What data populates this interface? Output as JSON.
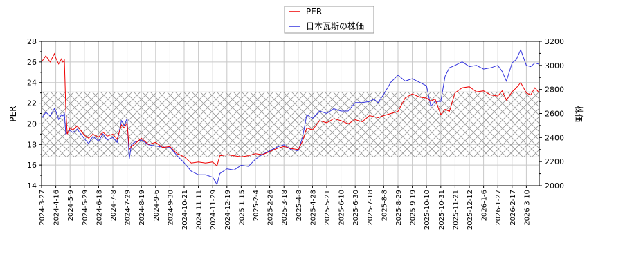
{
  "legend": {
    "items": [
      {
        "label": "PER",
        "color": "#ee0000"
      },
      {
        "label": "日本瓦斯の株価",
        "color": "#3333dd"
      }
    ]
  },
  "chart_data": {
    "type": "line",
    "title": "",
    "xlabel": "",
    "ylabel": "PER",
    "ylabel_right": "株価",
    "ylim": [
      14,
      28
    ],
    "ylim_right": [
      2000,
      3200
    ],
    "yticks": [
      14,
      16,
      18,
      20,
      22,
      24,
      26,
      28
    ],
    "yticks_right": [
      2000,
      2200,
      2400,
      2600,
      2800,
      3000,
      3200
    ],
    "grid": true,
    "legend_position": "top-center",
    "shaded_band": {
      "axis": "left",
      "from": 16.8,
      "to": 23.1,
      "style": "crosshatch"
    },
    "x_tick_labels": [
      "2024-3-27",
      "2024-4-16",
      "2024-5-9",
      "2024-5-29",
      "2024-6-18",
      "2024-7-8",
      "2024-7-29",
      "2024-8-19",
      "2024-9-6",
      "2024-9-30",
      "2024-10-21",
      "2024-11-11",
      "2024-11-29",
      "2024-12-19",
      "2025-1-15",
      "2025-2-4",
      "2025-2-26",
      "2025-3-18",
      "2025-4-8",
      "2025-4-28",
      "2025-5-21",
      "2025-6-10",
      "2025-6-30",
      "2025-7-18",
      "2025-8-8",
      "2025-8-29",
      "2025-9-19",
      "2025-10-10",
      "2025-10-31",
      "2025-11-21",
      "2025-12-12",
      "2026-1-6",
      "2026-1-27",
      "2026-2-17",
      "2026-3-10"
    ],
    "series": [
      {
        "name": "PER",
        "axis": "left",
        "color": "#ee0000",
        "x": [
          0,
          0.3,
          0.6,
          0.9,
          1.0,
          1.2,
          1.4,
          1.5,
          1.6,
          1.7,
          1.8,
          2.0,
          2.2,
          2.5,
          3.0,
          3.3,
          3.6,
          4.0,
          4.3,
          4.6,
          5.0,
          5.3,
          5.6,
          5.8,
          6.0,
          6.15,
          6.3,
          6.5,
          7.0,
          7.5,
          8.0,
          8.5,
          9.0,
          9.5,
          10.0,
          10.5,
          11.0,
          11.5,
          12.0,
          12.3,
          12.5,
          13.0,
          13.5,
          14.0,
          14.5,
          15.0,
          15.5,
          16.0,
          16.5,
          17.0,
          17.5,
          18.0,
          18.3,
          18.6,
          19.0,
          19.5,
          20.0,
          20.5,
          21.0,
          21.5,
          22.0,
          22.5,
          23.0,
          23.3,
          23.6,
          24.0,
          24.5,
          25.0,
          25.5,
          26.0,
          26.5,
          27.0,
          27.3,
          27.6,
          28.0,
          28.3,
          28.6,
          29.0,
          29.5,
          30.0,
          30.5,
          31.0,
          31.5,
          32.0,
          32.3,
          32.6,
          33.0,
          33.3,
          33.6,
          34.0,
          34.3,
          34.6,
          34.9
        ],
        "values": [
          26.0,
          26.6,
          26.0,
          26.8,
          26.4,
          25.8,
          26.3,
          26.0,
          26.2,
          21.5,
          19.0,
          19.6,
          19.4,
          19.8,
          18.9,
          18.6,
          19.0,
          18.7,
          19.2,
          18.8,
          19.0,
          18.5,
          19.9,
          19.6,
          20.1,
          17.5,
          17.8,
          18.0,
          18.6,
          18.0,
          18.2,
          17.7,
          17.8,
          17.1,
          16.8,
          16.2,
          16.3,
          16.2,
          16.3,
          15.9,
          16.9,
          17.0,
          16.9,
          16.8,
          16.9,
          17.1,
          17.0,
          17.3,
          17.6,
          17.8,
          17.6,
          17.5,
          18.3,
          19.6,
          19.4,
          20.3,
          20.1,
          20.5,
          20.3,
          20.0,
          20.4,
          20.2,
          20.8,
          20.7,
          20.6,
          20.8,
          21.0,
          21.2,
          22.5,
          22.9,
          22.6,
          22.5,
          22.2,
          22.4,
          20.9,
          21.4,
          21.2,
          23.0,
          23.5,
          23.6,
          23.1,
          23.2,
          22.8,
          22.7,
          23.2,
          22.3,
          23.1,
          23.5,
          24.0,
          23.0,
          22.8,
          23.5,
          23.0
        ]
      },
      {
        "name": "日本瓦斯の株価",
        "axis": "right",
        "color": "#3333dd",
        "x": [
          0,
          0.3,
          0.6,
          0.9,
          1.0,
          1.2,
          1.4,
          1.5,
          1.6,
          1.7,
          1.8,
          2.0,
          2.2,
          2.5,
          3.0,
          3.3,
          3.6,
          4.0,
          4.3,
          4.6,
          5.0,
          5.3,
          5.6,
          5.8,
          6.0,
          6.15,
          6.3,
          6.5,
          7.0,
          7.5,
          8.0,
          8.5,
          9.0,
          9.5,
          10.0,
          10.5,
          11.0,
          11.5,
          12.0,
          12.3,
          12.5,
          13.0,
          13.5,
          14.0,
          14.5,
          15.0,
          15.5,
          16.0,
          16.5,
          17.0,
          17.5,
          18.0,
          18.3,
          18.6,
          19.0,
          19.5,
          20.0,
          20.5,
          21.0,
          21.5,
          22.0,
          22.5,
          23.0,
          23.3,
          23.6,
          24.0,
          24.5,
          25.0,
          25.5,
          26.0,
          26.5,
          27.0,
          27.3,
          27.6,
          28.0,
          28.3,
          28.6,
          29.0,
          29.5,
          30.0,
          30.5,
          31.0,
          31.5,
          32.0,
          32.3,
          32.6,
          33.0,
          33.3,
          33.6,
          34.0,
          34.3,
          34.6,
          34.9
        ],
        "values": [
          2560,
          2610,
          2580,
          2640,
          2620,
          2550,
          2590,
          2580,
          2600,
          2430,
          2440,
          2460,
          2440,
          2470,
          2390,
          2350,
          2410,
          2370,
          2430,
          2380,
          2400,
          2360,
          2540,
          2500,
          2560,
          2220,
          2340,
          2360,
          2380,
          2340,
          2330,
          2320,
          2320,
          2250,
          2190,
          2120,
          2090,
          2090,
          2070,
          2010,
          2100,
          2140,
          2130,
          2170,
          2160,
          2220,
          2260,
          2290,
          2320,
          2340,
          2300,
          2290,
          2400,
          2590,
          2560,
          2620,
          2600,
          2640,
          2620,
          2620,
          2690,
          2690,
          2700,
          2720,
          2690,
          2760,
          2860,
          2920,
          2870,
          2890,
          2860,
          2830,
          2660,
          2700,
          2700,
          2910,
          2980,
          3000,
          3030,
          2990,
          3000,
          2970,
          2980,
          3000,
          2950,
          2870,
          3020,
          3050,
          3130,
          3000,
          2990,
          3020,
          3010
        ]
      }
    ]
  }
}
